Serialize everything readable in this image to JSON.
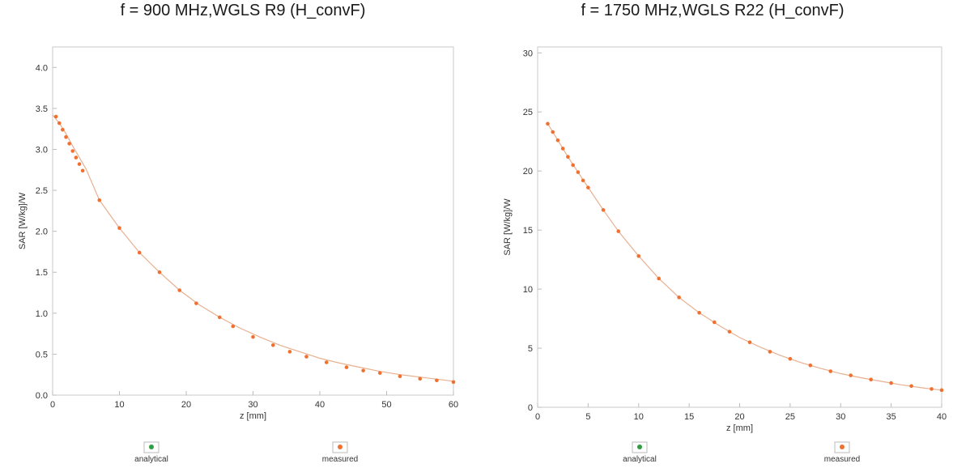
{
  "chart_data": [
    {
      "type": "scatter",
      "title": "f = 900 MHz,WGLS R9 (H_convF)",
      "xlabel": "z [mm]",
      "ylabel": "SAR [W/kg]/W",
      "xlim": [
        0,
        60
      ],
      "ylim": [
        0,
        4.25
      ],
      "xticks": [
        0,
        10,
        20,
        30,
        40,
        50,
        60
      ],
      "yticks": [
        0.0,
        0.5,
        1.0,
        1.5,
        2.0,
        2.5,
        3.0,
        3.5,
        4.0
      ],
      "ytick_labels": [
        "0.0",
        "0.5",
        "1.0",
        "1.5",
        "2.0",
        "2.5",
        "3.0",
        "3.5",
        "4.0"
      ],
      "legend": [
        "analytical",
        "measured"
      ],
      "legend_placement": "bottom",
      "colors": {
        "analytical": "#2e9e3e",
        "measured": "#f07030",
        "curve": "#e8b090"
      },
      "series": [
        {
          "name": "analytical",
          "x": [
            0,
            1,
            2,
            3,
            4,
            5,
            7,
            10,
            13,
            16,
            19,
            22,
            25,
            28,
            31,
            34,
            37,
            40,
            43,
            46,
            49,
            52,
            55,
            58,
            60
          ],
          "y": [
            3.42,
            3.32,
            3.19,
            3.04,
            2.9,
            2.76,
            2.38,
            2.04,
            1.74,
            1.5,
            1.28,
            1.1,
            0.95,
            0.82,
            0.71,
            0.61,
            0.53,
            0.45,
            0.39,
            0.34,
            0.29,
            0.25,
            0.22,
            0.19,
            0.17
          ]
        },
        {
          "name": "measured",
          "x": [
            0.5,
            1,
            1.5,
            2,
            2.5,
            3,
            3.5,
            4,
            4.5,
            7,
            10,
            13,
            16,
            19,
            21.5,
            25,
            27,
            30,
            33,
            35.5,
            38,
            41,
            44,
            46.5,
            49,
            52,
            55,
            57.5,
            60
          ],
          "y": [
            3.4,
            3.32,
            3.24,
            3.15,
            3.07,
            2.98,
            2.9,
            2.82,
            2.74,
            2.38,
            2.04,
            1.74,
            1.5,
            1.28,
            1.12,
            0.95,
            0.84,
            0.71,
            0.61,
            0.53,
            0.47,
            0.4,
            0.34,
            0.3,
            0.27,
            0.23,
            0.2,
            0.18,
            0.16
          ]
        }
      ]
    },
    {
      "type": "scatter",
      "title": "f = 1750 MHz,WGLS R22 (H_convF)",
      "xlabel": "z [mm]",
      "ylabel": "SAR [W/kg]/W",
      "xlim": [
        0,
        40
      ],
      "ylim": [
        0,
        30.5
      ],
      "xticks": [
        0,
        5,
        10,
        15,
        20,
        25,
        30,
        35,
        40
      ],
      "yticks": [
        0,
        5,
        10,
        15,
        20,
        25,
        30
      ],
      "ytick_labels": [
        "0",
        "5",
        "10",
        "15",
        "20",
        "25",
        "30"
      ],
      "legend": [
        "analytical",
        "measured"
      ],
      "legend_placement": "bottom",
      "colors": {
        "analytical": "#2e9e3e",
        "measured": "#f07030",
        "curve": "#e8b090"
      },
      "series": [
        {
          "name": "analytical",
          "x": [
            1,
            2,
            3,
            4,
            5,
            6.5,
            8,
            10,
            12,
            14,
            16,
            18,
            20,
            22,
            24,
            26,
            28,
            30,
            32,
            34,
            36,
            38,
            40
          ],
          "y": [
            24.0,
            22.6,
            21.2,
            19.9,
            18.6,
            16.7,
            14.9,
            12.8,
            10.9,
            9.3,
            8.0,
            6.9,
            5.9,
            5.1,
            4.4,
            3.8,
            3.3,
            2.85,
            2.5,
            2.2,
            1.9,
            1.65,
            1.45
          ]
        },
        {
          "name": "measured",
          "x": [
            1,
            1.5,
            2,
            2.5,
            3,
            3.5,
            4,
            4.5,
            5,
            6.5,
            8,
            10,
            12,
            14,
            16,
            17.5,
            19,
            21,
            23,
            25,
            27,
            29,
            31,
            33,
            35,
            37,
            39,
            40
          ],
          "y": [
            24.0,
            23.3,
            22.6,
            21.9,
            21.2,
            20.5,
            19.9,
            19.2,
            18.6,
            16.7,
            14.9,
            12.8,
            10.9,
            9.3,
            8.0,
            7.2,
            6.4,
            5.5,
            4.7,
            4.1,
            3.55,
            3.05,
            2.7,
            2.35,
            2.05,
            1.8,
            1.55,
            1.45
          ]
        }
      ]
    }
  ]
}
